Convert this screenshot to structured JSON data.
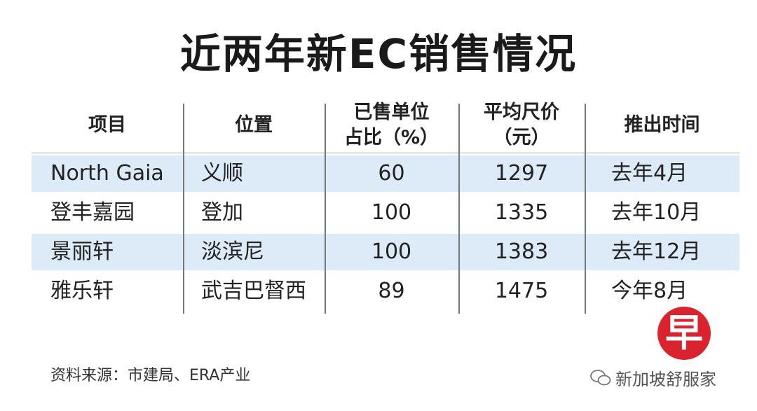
{
  "title": "近两年新EC销售情况",
  "table": {
    "header": [
      [
        "项目"
      ],
      [
        "位置"
      ],
      [
        "已售单位",
        "占比（%）"
      ],
      [
        "平均尺价",
        "（元）"
      ],
      [
        "推出时间"
      ]
    ],
    "rows": [
      [
        "North Gaia",
        "义顺",
        "60",
        "1297",
        "去年4月"
      ],
      [
        "登丰嘉园",
        "登加",
        "100",
        "1335",
        "去年10月"
      ],
      [
        "景丽轩",
        "淡滨尼",
        "100",
        "1383",
        "去年12月"
      ],
      [
        "雅乐轩",
        "武吉巴督西",
        "89",
        "1475",
        "今年8月"
      ]
    ]
  },
  "source": "资料来源：市建局、ERA产业",
  "logo": "早",
  "watermark": "新加坡舒服家"
}
